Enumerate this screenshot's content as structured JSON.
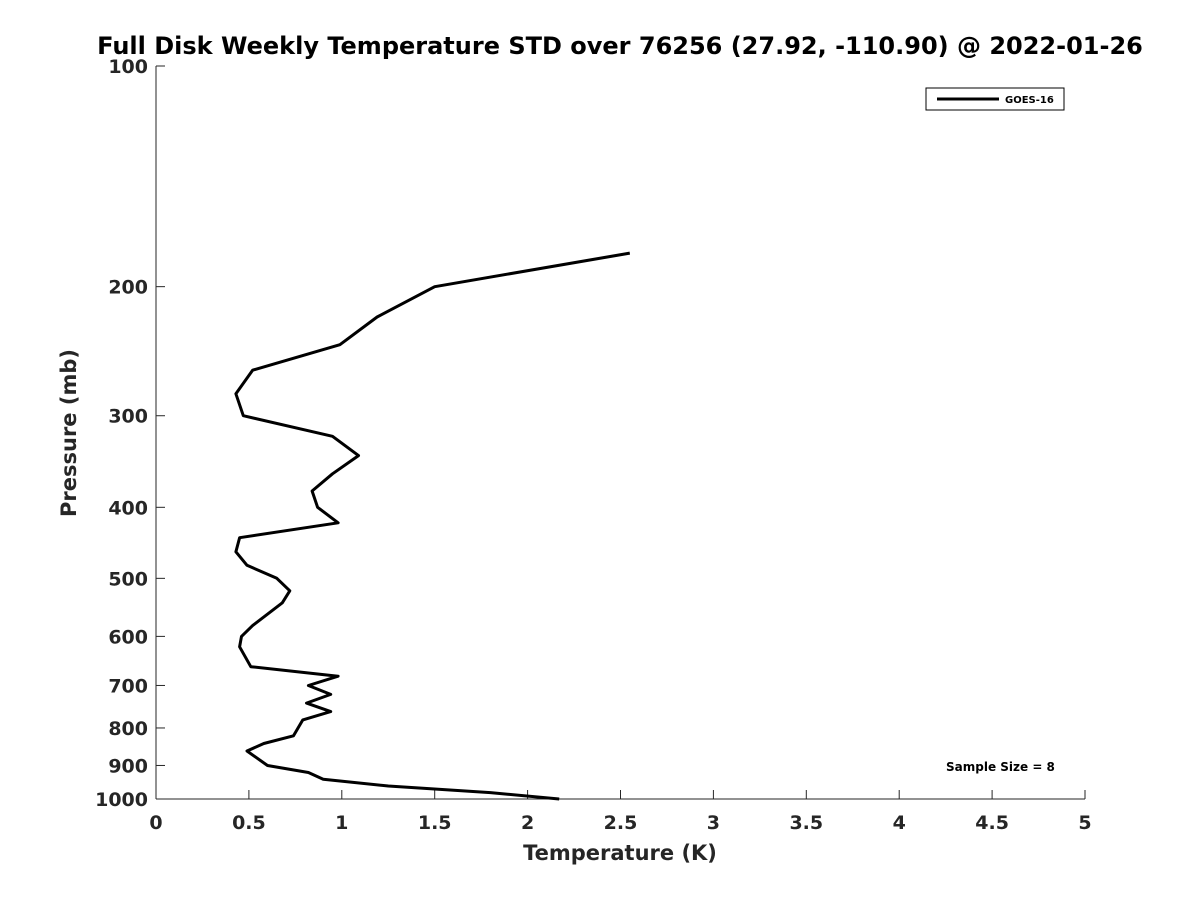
{
  "chart_data": {
    "type": "line",
    "title": "Full Disk Weekly Temperature STD over 76256 (27.92, -110.90) @ 2022-01-26",
    "xlabel": "Temperature (K)",
    "ylabel": "Pressure (mb)",
    "xlim": [
      0,
      5
    ],
    "ylim": [
      1000,
      100
    ],
    "y_scale": "log",
    "y_reversed": true,
    "grid": false,
    "legend_position": "top-right",
    "x_ticks": [
      "0",
      "0.5",
      "1",
      "1.5",
      "2",
      "2.5",
      "3",
      "3.5",
      "4",
      "4.5",
      "5"
    ],
    "y_ticks": [
      "100",
      "200",
      "300",
      "400",
      "500",
      "600",
      "700",
      "800",
      "900",
      "1000"
    ],
    "series": [
      {
        "name": "GOES-16",
        "color": "#000000",
        "points": [
          {
            "x": 2.55,
            "y": 180
          },
          {
            "x": 1.5,
            "y": 200
          },
          {
            "x": 1.19,
            "y": 220
          },
          {
            "x": 0.99,
            "y": 240
          },
          {
            "x": 0.52,
            "y": 260
          },
          {
            "x": 0.43,
            "y": 280
          },
          {
            "x": 0.47,
            "y": 300
          },
          {
            "x": 0.95,
            "y": 320
          },
          {
            "x": 1.09,
            "y": 340
          },
          {
            "x": 0.95,
            "y": 360
          },
          {
            "x": 0.84,
            "y": 380
          },
          {
            "x": 0.87,
            "y": 400
          },
          {
            "x": 0.98,
            "y": 420
          },
          {
            "x": 0.45,
            "y": 440
          },
          {
            "x": 0.43,
            "y": 460
          },
          {
            "x": 0.49,
            "y": 480
          },
          {
            "x": 0.65,
            "y": 500
          },
          {
            "x": 0.72,
            "y": 520
          },
          {
            "x": 0.68,
            "y": 540
          },
          {
            "x": 0.52,
            "y": 580
          },
          {
            "x": 0.46,
            "y": 600
          },
          {
            "x": 0.45,
            "y": 620
          },
          {
            "x": 0.51,
            "y": 660
          },
          {
            "x": 0.98,
            "y": 680
          },
          {
            "x": 0.82,
            "y": 700
          },
          {
            "x": 0.94,
            "y": 720
          },
          {
            "x": 0.81,
            "y": 740
          },
          {
            "x": 0.94,
            "y": 760
          },
          {
            "x": 0.79,
            "y": 780
          },
          {
            "x": 0.74,
            "y": 820
          },
          {
            "x": 0.58,
            "y": 840
          },
          {
            "x": 0.49,
            "y": 860
          },
          {
            "x": 0.6,
            "y": 900
          },
          {
            "x": 0.82,
            "y": 920
          },
          {
            "x": 0.9,
            "y": 940
          },
          {
            "x": 1.25,
            "y": 960
          },
          {
            "x": 1.8,
            "y": 980
          },
          {
            "x": 2.17,
            "y": 1000
          }
        ]
      }
    ],
    "annotation": "Sample Size = 8"
  }
}
